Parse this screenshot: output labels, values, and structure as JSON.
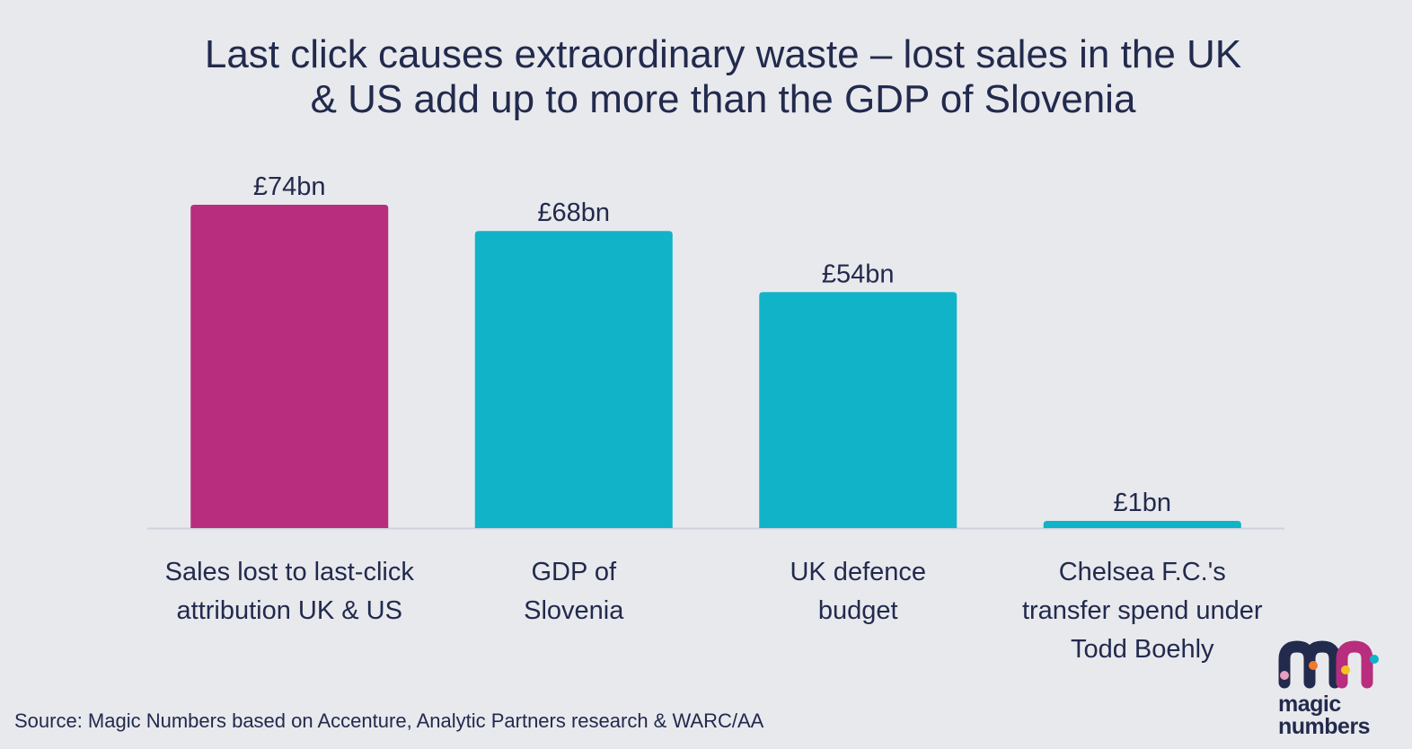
{
  "title_lines": [
    "Last click causes extraordinary waste – lost sales in the UK",
    "& US add up to more than the GDP of Slovenia"
  ],
  "source": "Source: Magic Numbers based on Accenture, Analytic Partners research & WARC/AA",
  "logo": {
    "line1": "magic",
    "line2": "numbers"
  },
  "colors": {
    "highlight": "#b82d7d",
    "primary": "#10b3c8",
    "text": "#222a4d",
    "background": "#e8e9ed",
    "axis": "#cfd2dc"
  },
  "chart_data": {
    "type": "bar",
    "title": "Last click causes extraordinary waste – lost sales in the UK & US add up to more than the GDP of Slovenia",
    "categories": [
      [
        "Sales lost to last-click",
        "attribution UK & US"
      ],
      [
        "GDP of",
        "Slovenia"
      ],
      [
        "UK defence",
        "budget"
      ],
      [
        "Chelsea F.C.'s",
        "transfer spend under",
        "Todd Boehly"
      ]
    ],
    "values": [
      74,
      68,
      54,
      1
    ],
    "value_labels": [
      "£74bn",
      "£68bn",
      "£54bn",
      "£1bn"
    ],
    "highlight_index": 0,
    "unit": "£bn",
    "xlabel": "",
    "ylabel": "",
    "ylim": [
      0,
      74
    ],
    "grid": false
  }
}
